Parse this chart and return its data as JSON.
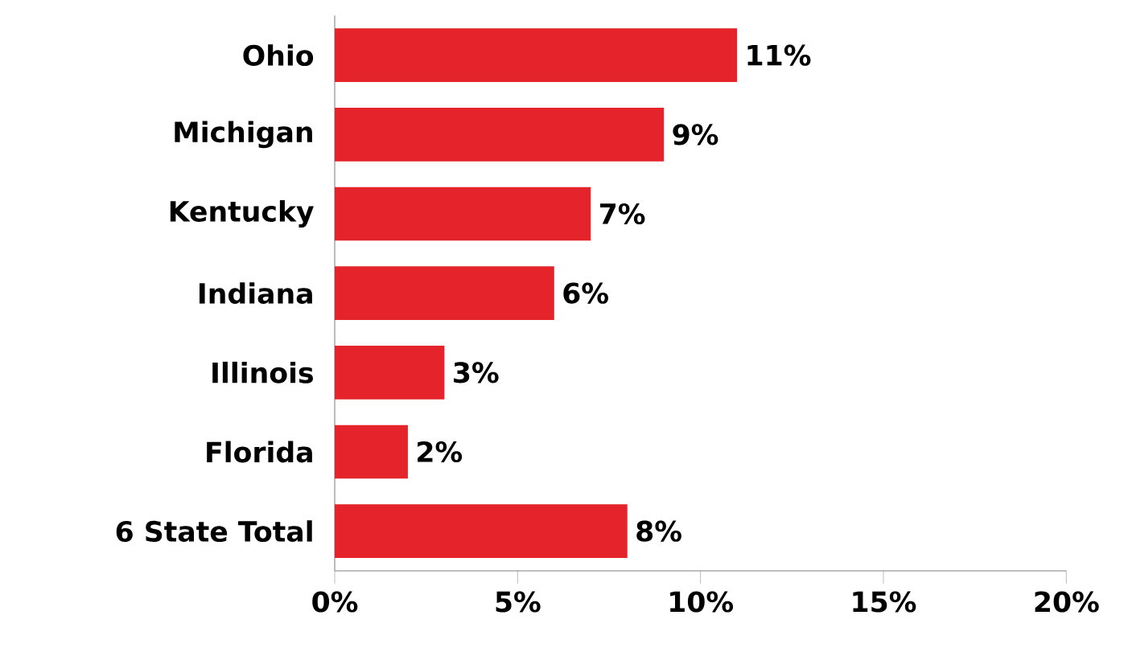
{
  "chart_data": {
    "type": "bar",
    "orientation": "horizontal",
    "categories": [
      "Ohio",
      "Michigan",
      "Kentucky",
      "Indiana",
      "Illinois",
      "Florida",
      "6 State Total"
    ],
    "values": [
      11,
      9,
      7,
      6,
      3,
      2,
      8
    ],
    "value_labels": [
      "11%",
      "9%",
      "7%",
      "6%",
      "3%",
      "2%",
      "8%"
    ],
    "color": "#e4232a",
    "xlim": [
      0,
      20
    ],
    "xticks": [
      {
        "value": 0,
        "label": "0%"
      },
      {
        "value": 5,
        "label": "5%"
      },
      {
        "value": 10,
        "label": "10%"
      },
      {
        "value": 15,
        "label": "15%"
      },
      {
        "value": 20,
        "label": "20%"
      }
    ],
    "grid": false
  }
}
